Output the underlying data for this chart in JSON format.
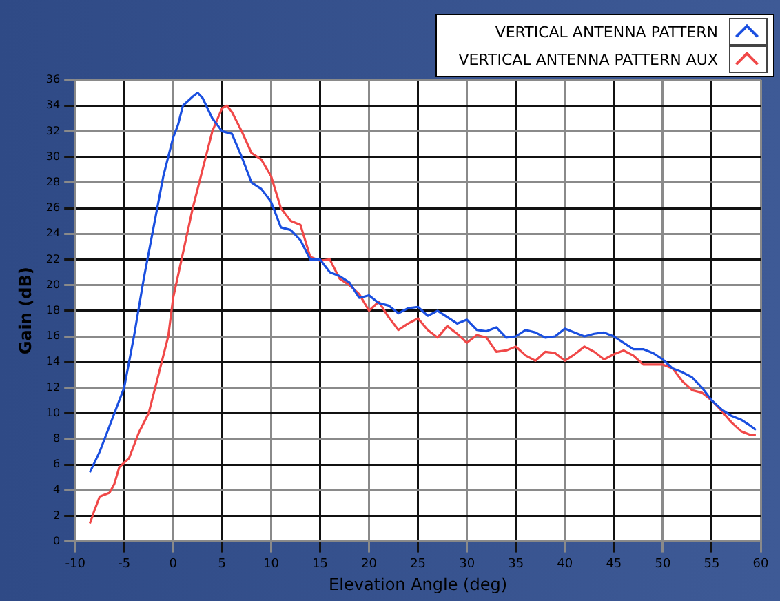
{
  "chart_data": {
    "type": "line",
    "xlabel": "Elevation Angle (deg)",
    "ylabel": "Gain (dB)",
    "xlim": [
      -10,
      60
    ],
    "xticks": [
      -10,
      -5,
      0,
      5,
      10,
      15,
      20,
      25,
      30,
      35,
      40,
      45,
      50,
      55,
      60
    ],
    "ylim": [
      0,
      36
    ],
    "yticks": [
      0,
      2,
      4,
      6,
      8,
      10,
      12,
      14,
      16,
      18,
      20,
      22,
      24,
      26,
      28,
      30,
      32,
      34,
      36
    ],
    "grid": true,
    "legend": "top right",
    "marker": "none",
    "line_style": "solid",
    "series": [
      {
        "name": "VERTICAL ANTENNA PATTERN",
        "color": "#1a4fe0",
        "x": [
          -8.5,
          -7.5,
          -6.5,
          -5,
          -4,
          -3,
          -2,
          -1,
          0,
          0.5,
          1,
          2,
          2.5,
          3,
          4,
          5,
          6,
          7,
          8,
          9,
          10,
          11,
          12,
          13,
          14,
          15,
          16,
          17,
          18,
          19,
          20,
          21,
          22,
          23,
          24,
          25,
          26,
          27,
          28,
          29,
          30,
          31,
          32,
          33,
          34,
          35,
          36,
          37,
          38,
          39,
          40,
          41,
          42,
          43,
          44,
          45,
          46,
          47,
          48,
          49,
          50,
          51,
          52,
          53,
          54,
          55,
          56,
          57,
          58,
          59,
          59.5
        ],
        "values": [
          5.4,
          7,
          9,
          12,
          16,
          20.5,
          24.5,
          28.5,
          31.5,
          32.5,
          34,
          34.7,
          35,
          34.6,
          33,
          32,
          31.8,
          30,
          28,
          27.5,
          26.5,
          24.5,
          24.3,
          23.5,
          22,
          22,
          21,
          20.7,
          20.2,
          19,
          19.2,
          18.6,
          18.4,
          17.8,
          18.2,
          18.3,
          17.6,
          18,
          17.5,
          17,
          17.3,
          16.5,
          16.4,
          16.7,
          15.9,
          16,
          16.5,
          16.3,
          15.9,
          16,
          16.6,
          16.3,
          16,
          16.2,
          16.3,
          16,
          15.5,
          15,
          15,
          14.7,
          14.2,
          13.5,
          13.2,
          12.8,
          12,
          11,
          10.3,
          9.8,
          9.5,
          9,
          8.7
        ]
      },
      {
        "name": "VERTICAL ANTENNA PATTERN AUX",
        "color": "#f04848",
        "x": [
          -8.5,
          -8,
          -7.5,
          -6.5,
          -6,
          -5.5,
          -4.5,
          -3.5,
          -2.5,
          -1.5,
          -1,
          -0.5,
          0,
          1,
          2,
          3,
          4,
          5,
          5.5,
          6,
          7,
          8,
          9,
          10,
          11,
          12,
          13,
          14,
          15,
          16,
          17,
          18,
          19,
          20,
          21,
          22,
          23,
          24,
          25,
          26,
          27,
          28,
          29,
          30,
          31,
          32,
          33,
          34,
          35,
          36,
          37,
          38,
          39,
          40,
          41,
          42,
          43,
          44,
          45,
          46,
          47,
          48,
          50,
          51,
          52,
          53,
          54,
          55,
          56,
          57,
          58,
          59,
          59.5
        ],
        "values": [
          1.4,
          2.5,
          3.5,
          3.8,
          4.5,
          5.8,
          6.5,
          8.5,
          10,
          13,
          14.5,
          16,
          19,
          22.5,
          26,
          29,
          32,
          33.8,
          34,
          33.5,
          32,
          30.3,
          29.8,
          28.5,
          26,
          25,
          24.7,
          22.2,
          21.9,
          22,
          20.5,
          20,
          19.3,
          18,
          18.7,
          17.5,
          16.5,
          17,
          17.4,
          16.5,
          15.9,
          16.8,
          16.2,
          15.5,
          16.1,
          15.9,
          14.8,
          14.9,
          15.2,
          14.5,
          14.1,
          14.8,
          14.7,
          14.1,
          14.6,
          15.2,
          14.8,
          14.2,
          14.6,
          14.9,
          14.5,
          13.8,
          13.8,
          13.5,
          12.5,
          11.8,
          11.6,
          11,
          10.2,
          9.3,
          8.6,
          8.3,
          8.3
        ]
      }
    ]
  }
}
